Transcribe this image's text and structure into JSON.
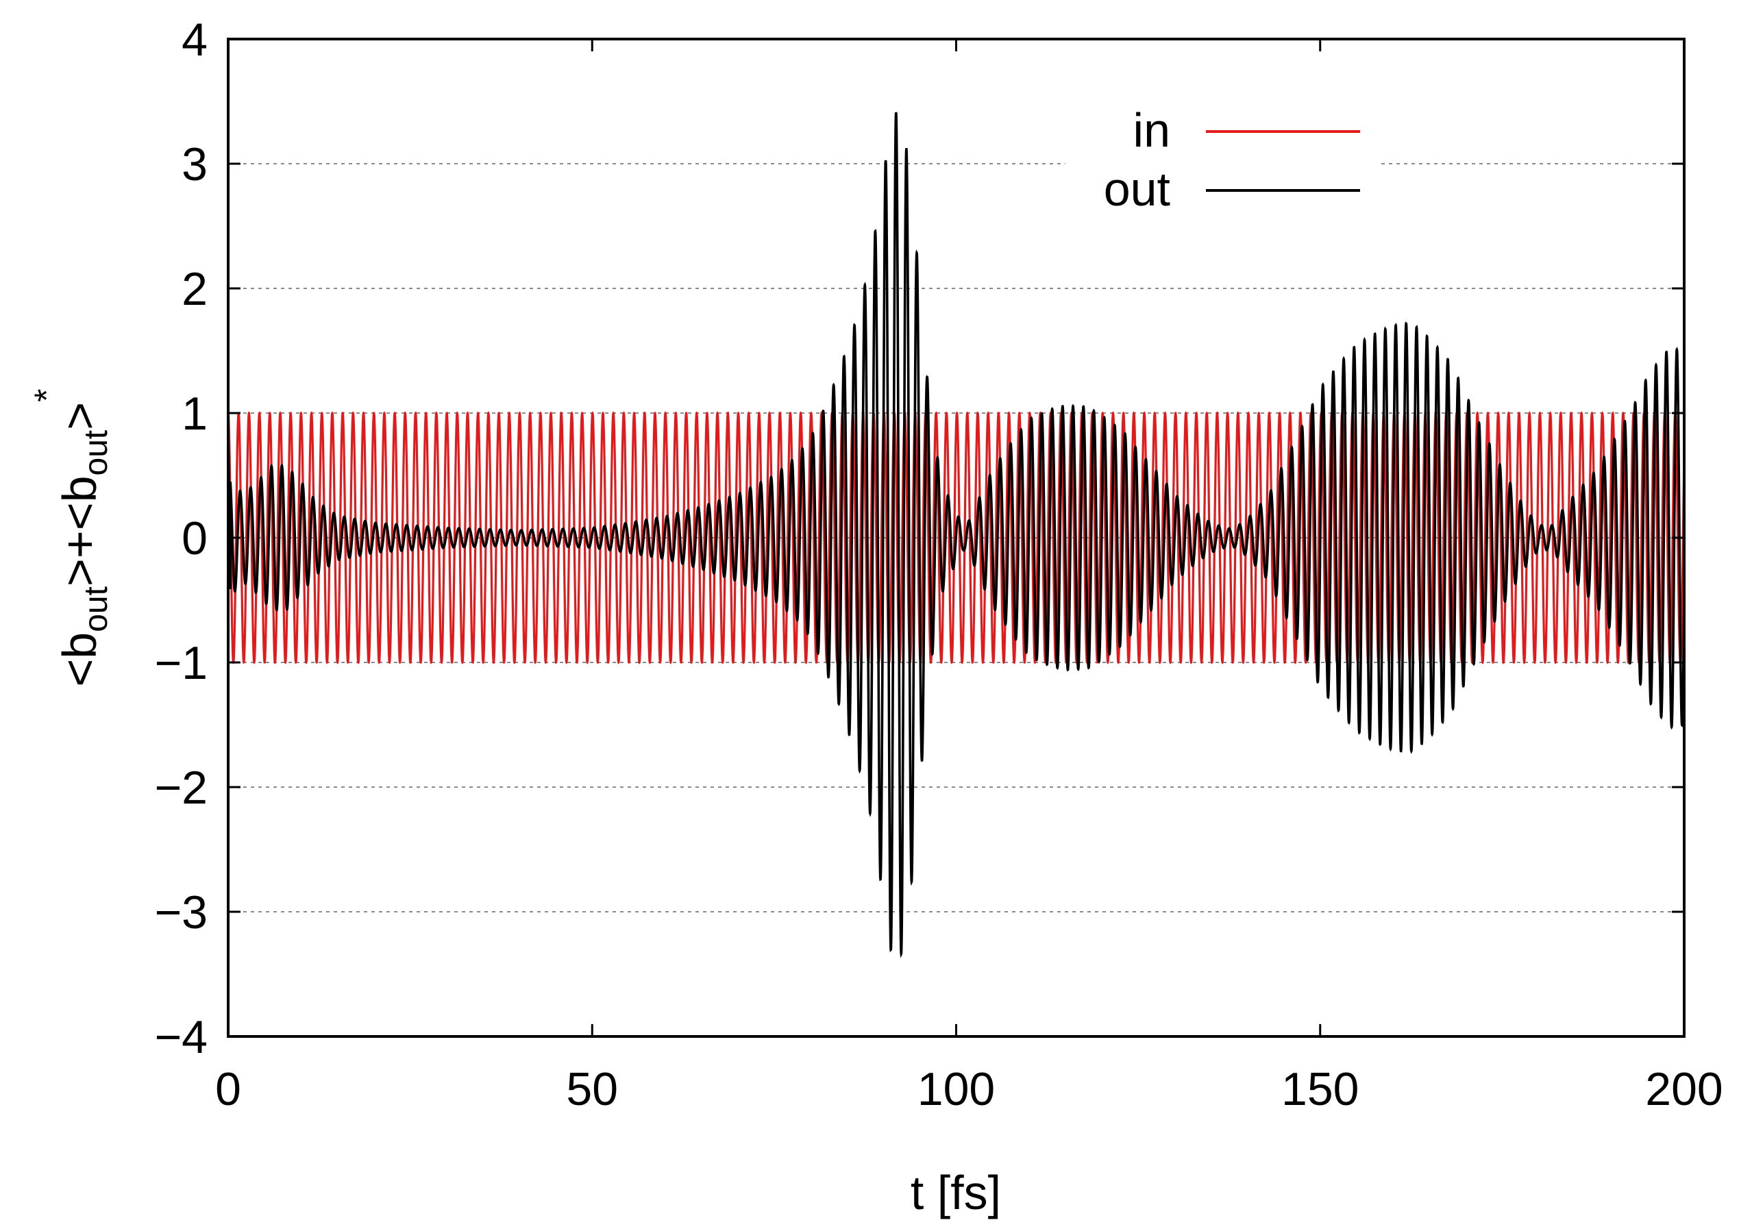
{
  "chart_data": {
    "type": "line",
    "title": "",
    "xlabel": "t [fs]",
    "ylabel": "<b_out>+<b_out>*",
    "xlim": [
      0,
      200
    ],
    "ylim": [
      -4,
      4
    ],
    "xticks": [
      0,
      50,
      100,
      150,
      200
    ],
    "xtick_labels": [
      "0",
      "50",
      "100",
      "150",
      "200"
    ],
    "yticks": [
      -4,
      -3,
      -2,
      -1,
      0,
      1,
      2,
      3,
      4
    ],
    "ytick_labels": [
      "−4",
      "−3",
      "−2",
      "−1",
      "0",
      "1",
      "2",
      "3",
      "4"
    ],
    "grid": "horizontal dashed",
    "legend_position": "top-right",
    "series": [
      {
        "name": "in",
        "color": "#e31a1c",
        "style": "cosine",
        "amplitude": 1.0,
        "period_fs": 1.43,
        "x_range": [
          0,
          200
        ]
      },
      {
        "name": "out",
        "color": "#000000",
        "style": "oscillation-with-envelope",
        "period_fs": 1.43,
        "envelope": {
          "x": [
            0,
            2,
            4,
            6,
            8,
            10,
            12,
            15,
            20,
            25,
            30,
            35,
            40,
            45,
            50,
            55,
            60,
            65,
            70,
            75,
            78,
            80,
            82,
            84,
            86,
            88,
            89,
            90,
            91,
            92,
            93,
            94,
            95,
            96,
            97,
            98,
            100,
            101,
            102,
            103,
            105,
            108,
            110,
            113,
            115,
            118,
            120,
            123,
            125,
            128,
            130,
            133,
            135,
            137,
            138,
            140,
            143,
            145,
            148,
            150,
            153,
            155,
            158,
            160,
            162,
            163,
            165,
            168,
            170,
            172,
            175,
            178,
            180,
            182,
            183,
            185,
            188,
            190,
            193,
            195,
            197,
            198,
            200
          ],
          "y": [
            0.5,
            0.35,
            0.45,
            0.58,
            0.58,
            0.45,
            0.3,
            0.18,
            0.12,
            0.1,
            0.08,
            0.07,
            0.06,
            0.07,
            0.08,
            0.12,
            0.17,
            0.25,
            0.35,
            0.5,
            0.65,
            0.8,
            1.05,
            1.35,
            1.7,
            2.15,
            2.5,
            2.9,
            3.3,
            3.45,
            3.2,
            2.7,
            2.0,
            1.3,
            0.8,
            0.45,
            0.2,
            0.1,
            0.15,
            0.3,
            0.55,
            0.8,
            0.95,
            1.03,
            1.06,
            1.05,
            0.98,
            0.85,
            0.7,
            0.5,
            0.35,
            0.2,
            0.12,
            0.08,
            0.07,
            0.15,
            0.35,
            0.6,
            0.95,
            1.2,
            1.42,
            1.55,
            1.65,
            1.7,
            1.72,
            1.7,
            1.6,
            1.4,
            1.15,
            0.9,
            0.55,
            0.25,
            0.1,
            0.1,
            0.2,
            0.35,
            0.55,
            0.75,
            1.05,
            1.3,
            1.45,
            1.52,
            1.5
          ]
        }
      }
    ]
  }
}
